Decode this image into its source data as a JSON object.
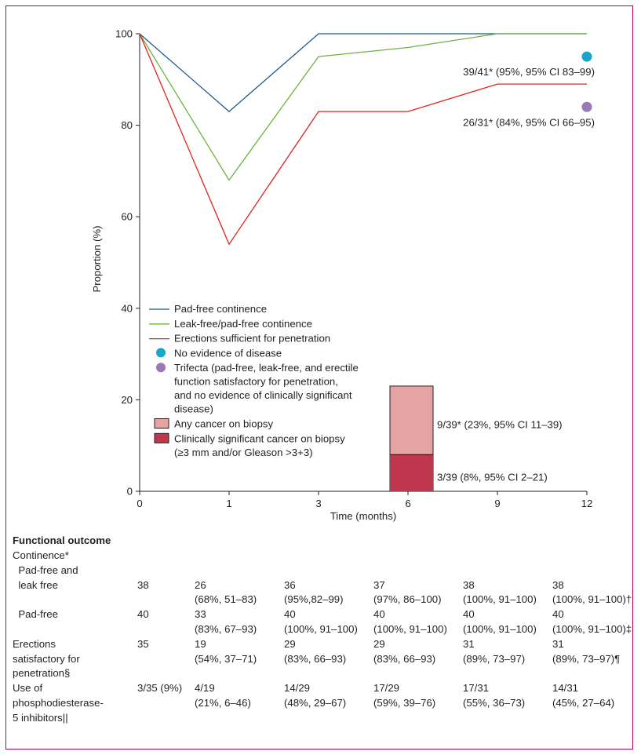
{
  "chart_data": {
    "type": "line",
    "x": [
      0,
      1,
      3,
      6,
      9,
      12
    ],
    "xlabel": "Time (months)",
    "ylabel": "Proportion (%)",
    "xticks": [
      "0",
      "1",
      "3",
      "6",
      "9",
      "12"
    ],
    "yticks": [
      "0",
      "20",
      "40",
      "60",
      "80",
      "100"
    ],
    "ylim": [
      0,
      100
    ],
    "grid": false,
    "legend_position": "left",
    "series": [
      {
        "name": "Pad-free continence",
        "color": "#1f5a8c",
        "values": [
          100,
          83,
          100,
          100,
          100,
          100
        ]
      },
      {
        "name": "Leak-free/pad-free continence",
        "color": "#6db33f",
        "values": [
          100,
          68,
          95,
          97,
          100,
          100
        ]
      },
      {
        "name": "Erections sufficient for penetration",
        "color": "#e2231a",
        "values": [
          100,
          54,
          83,
          83,
          89,
          89
        ]
      }
    ],
    "points": [
      {
        "name": "No evidence of disease",
        "x": 12,
        "y": 95,
        "color": "#1aa6c8",
        "label": "39/41* (95%, 95% CI 83–99)"
      },
      {
        "name": "Trifecta (pad-free, leak-free, and erectile function satisfactory for penetration, and no evidence of clinically significant disease)",
        "x": 12,
        "y": 84,
        "color": "#9b79b8",
        "label": "26/31* (84%, 95% CI 66–95)"
      }
    ],
    "bars": [
      {
        "name": "Any cancer on biopsy",
        "x": 6,
        "value": 23,
        "color": "#e5a4a3",
        "label": "9/39* (23%, 95% CI 11–39)"
      },
      {
        "name": "Clinically significant cancer on biopsy (≥3 mm and/or Gleason >3+3)",
        "x": 6,
        "value": 8,
        "color": "#c0364d",
        "label": "3/39 (8%, 95% CI 2–21)"
      }
    ],
    "legend": [
      {
        "kind": "line",
        "color": "#1f5a8c",
        "lines": [
          "Pad-free continence"
        ]
      },
      {
        "kind": "line",
        "color": "#6db33f",
        "lines": [
          "Leak-free/pad-free continence"
        ]
      },
      {
        "kind": "line",
        "color": "#e2231a",
        "lines": [
          "Erections sufficient for penetration"
        ]
      },
      {
        "kind": "dot",
        "color": "#1aa6c8",
        "lines": [
          "No evidence of disease"
        ]
      },
      {
        "kind": "dot",
        "color": "#9b79b8",
        "lines": [
          "Trifecta (pad-free, leak-free, and erectile",
          "function satisfactory for penetration,",
          "and no evidence of clinically significant",
          "disease)"
        ]
      },
      {
        "kind": "box",
        "color": "#e5a4a3",
        "lines": [
          "Any cancer on biopsy"
        ]
      },
      {
        "kind": "box",
        "color": "#c0364d",
        "lines": [
          "Clinically significant cancer on biopsy",
          "(≥3 mm and/or Gleason >3+3)"
        ]
      }
    ]
  },
  "table": {
    "heading": "Functional outcome",
    "rows": [
      {
        "label": [
          "Continence*"
        ],
        "first": "",
        "cells": []
      },
      {
        "label": [
          "  Pad-free and",
          "  leak free"
        ],
        "first": "38",
        "cells": [
          [
            "26",
            "(68%, 51–83)"
          ],
          [
            "36",
            "(95%,82–99)"
          ],
          [
            "37",
            "(97%, 86–100)"
          ],
          [
            "38",
            "(100%, 91–100)"
          ],
          [
            "38",
            "(100%, 91–100)†"
          ]
        ]
      },
      {
        "label": [
          "  Pad-free"
        ],
        "first": "40",
        "cells": [
          [
            "33",
            "(83%, 67–93)"
          ],
          [
            "40",
            "(100%, 91–100)"
          ],
          [
            "40",
            "(100%, 91–100)"
          ],
          [
            "40",
            "(100%, 91–100)"
          ],
          [
            "40",
            "(100%, 91–100)‡"
          ]
        ]
      },
      {
        "label": [
          "Erections",
          "satisfactory for",
          "penetration§"
        ],
        "first": "35",
        "cells": [
          [
            "19",
            "(54%, 37–71)"
          ],
          [
            "29",
            "(83%, 66–93)"
          ],
          [
            "29",
            "(83%, 66–93)"
          ],
          [
            "31",
            "(89%, 73–97)"
          ],
          [
            "31",
            "(89%, 73–97)¶"
          ]
        ]
      },
      {
        "label": [
          "Use of",
          "phosphodiesterase-",
          "5 inhibitors||"
        ],
        "first": "3/35 (9%)",
        "cells": [
          [
            "4/19",
            "(21%, 6–46)"
          ],
          [
            "14/29",
            "(48%, 29–67)"
          ],
          [
            "17/29",
            "(59%, 39–76)"
          ],
          [
            "17/31",
            "(55%, 36–73)"
          ],
          [
            "14/31",
            "(45%, 27–64)"
          ]
        ]
      }
    ]
  }
}
